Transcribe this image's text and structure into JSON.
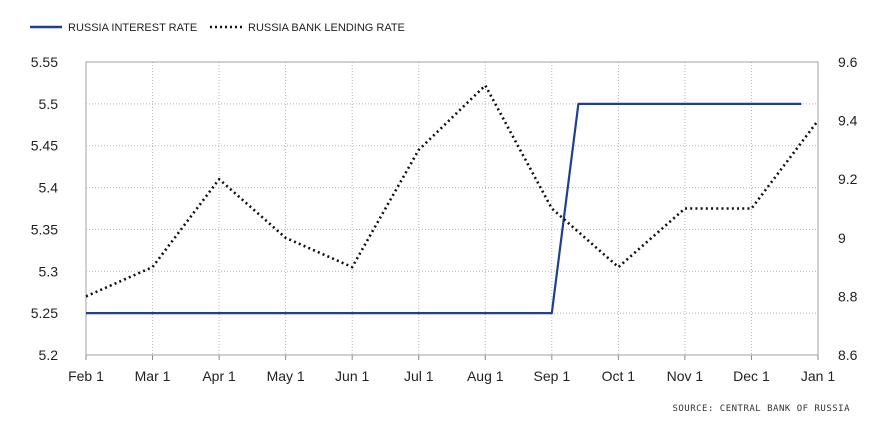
{
  "chart_data": {
    "type": "line",
    "title": "",
    "xlabel": "",
    "categories": [
      "Feb 1",
      "Mar 1",
      "Apr 1",
      "May 1",
      "Jun 1",
      "Jul 1",
      "Aug 1",
      "Sep 1",
      "Oct 1",
      "Nov 1",
      "Dec 1",
      "Jan 1"
    ],
    "y_left": {
      "ylim": [
        5.2,
        5.55
      ],
      "ticks": [
        "5.2",
        "5.25",
        "5.3",
        "5.35",
        "5.4",
        "5.45",
        "5.5",
        "5.55"
      ]
    },
    "y_right": {
      "ylim": [
        8.6,
        9.6
      ],
      "ticks": [
        "8.6",
        "8.8",
        "9",
        "9.2",
        "9.4",
        "9.6"
      ]
    },
    "grid": true,
    "legend_position": "top-left",
    "series": [
      {
        "name": "RUSSIA INTEREST RATE",
        "axis": "left",
        "style": "solid",
        "color": "#1f3f8f",
        "points": [
          [
            0,
            5.25
          ],
          [
            7,
            5.25
          ],
          [
            7.4,
            5.5
          ],
          [
            10.75,
            5.5
          ]
        ]
      },
      {
        "name": "RUSSIA BANK LENDING RATE",
        "axis": "right",
        "style": "dotted",
        "color": "#111111",
        "points": [
          [
            0,
            8.8
          ],
          [
            1,
            8.9
          ],
          [
            2,
            9.2
          ],
          [
            3,
            9.0
          ],
          [
            4,
            8.9
          ],
          [
            5,
            9.3
          ],
          [
            6,
            9.52
          ],
          [
            7,
            9.1
          ],
          [
            8,
            8.9
          ],
          [
            9,
            9.1
          ],
          [
            10,
            9.1
          ],
          [
            11,
            9.4
          ]
        ]
      }
    ]
  },
  "source_note": "SOURCE: CENTRAL BANK OF RUSSIA"
}
